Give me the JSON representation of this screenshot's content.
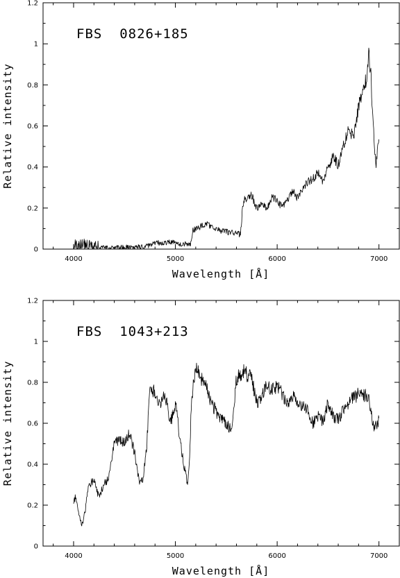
{
  "chart_data": [
    {
      "type": "line",
      "title": "FBS  0826+185",
      "xlabel": "Wavelength [",
      "xlabel_unit": "Å",
      "xlabel_close": "]",
      "ylabel": "Relative intensity",
      "xlim": [
        3700,
        7200
      ],
      "ylim": [
        0,
        1.2
      ],
      "xticks": [
        4000,
        5000,
        6000,
        7000
      ],
      "yticks": [
        0,
        0.2,
        0.4,
        0.6,
        0.8,
        1,
        1.2
      ],
      "ytick_labels": [
        "0",
        "0.2",
        "0.4",
        "0.6",
        "0.8",
        "1",
        "1.2"
      ],
      "x": [
        4000,
        4100,
        4200,
        4300,
        4400,
        4500,
        4600,
        4700,
        4750,
        4800,
        4850,
        4900,
        4950,
        5000,
        5050,
        5100,
        5150,
        5170,
        5200,
        5250,
        5300,
        5350,
        5400,
        5450,
        5500,
        5550,
        5600,
        5640,
        5660,
        5680,
        5700,
        5750,
        5800,
        5850,
        5900,
        5950,
        6000,
        6050,
        6100,
        6150,
        6200,
        6250,
        6300,
        6350,
        6400,
        6450,
        6500,
        6550,
        6600,
        6650,
        6700,
        6750,
        6800,
        6850,
        6880,
        6900,
        6920,
        6950,
        6970,
        7000
      ],
      "y": [
        0.02,
        0.015,
        0.01,
        0.008,
        0.008,
        0.008,
        0.01,
        0.012,
        0.02,
        0.03,
        0.03,
        0.028,
        0.035,
        0.03,
        0.025,
        0.025,
        0.02,
        0.09,
        0.1,
        0.11,
        0.12,
        0.115,
        0.1,
        0.09,
        0.085,
        0.08,
        0.08,
        0.07,
        0.2,
        0.24,
        0.25,
        0.26,
        0.2,
        0.23,
        0.2,
        0.25,
        0.24,
        0.2,
        0.24,
        0.28,
        0.25,
        0.3,
        0.33,
        0.34,
        0.37,
        0.33,
        0.4,
        0.45,
        0.41,
        0.5,
        0.58,
        0.55,
        0.69,
        0.8,
        0.83,
        0.96,
        0.85,
        0.55,
        0.4,
        0.54
      ]
    },
    {
      "type": "line",
      "title": "FBS  1043+213",
      "xlabel": "Wavelength [",
      "xlabel_unit": "Å",
      "xlabel_close": "]",
      "ylabel": "Relative intensity",
      "xlim": [
        3700,
        7200
      ],
      "ylim": [
        0,
        1.2
      ],
      "xticks": [
        4000,
        5000,
        6000,
        7000
      ],
      "yticks": [
        0,
        0.2,
        0.4,
        0.6,
        0.8,
        1,
        1.2
      ],
      "ytick_labels": [
        "0",
        "0.2",
        "0.4",
        "0.6",
        "0.8",
        "1",
        "1.2"
      ],
      "x": [
        4000,
        4020,
        4050,
        4080,
        4100,
        4150,
        4200,
        4250,
        4300,
        4350,
        4400,
        4450,
        4500,
        4550,
        4600,
        4650,
        4680,
        4720,
        4750,
        4800,
        4850,
        4900,
        4950,
        5000,
        5050,
        5100,
        5120,
        5140,
        5160,
        5200,
        5250,
        5300,
        5350,
        5400,
        5450,
        5500,
        5550,
        5600,
        5650,
        5680,
        5700,
        5750,
        5800,
        5850,
        5900,
        5950,
        6000,
        6050,
        6100,
        6150,
        6200,
        6250,
        6300,
        6350,
        6400,
        6450,
        6500,
        6550,
        6600,
        6650,
        6700,
        6750,
        6800,
        6850,
        6900,
        6920,
        6950,
        6980,
        7000
      ],
      "y": [
        0.2,
        0.25,
        0.15,
        0.1,
        0.13,
        0.3,
        0.32,
        0.24,
        0.3,
        0.34,
        0.5,
        0.52,
        0.5,
        0.55,
        0.45,
        0.3,
        0.32,
        0.5,
        0.78,
        0.75,
        0.7,
        0.74,
        0.6,
        0.7,
        0.5,
        0.35,
        0.3,
        0.45,
        0.72,
        0.88,
        0.82,
        0.8,
        0.7,
        0.66,
        0.62,
        0.6,
        0.56,
        0.82,
        0.84,
        0.86,
        0.84,
        0.82,
        0.7,
        0.74,
        0.78,
        0.76,
        0.78,
        0.74,
        0.7,
        0.74,
        0.7,
        0.68,
        0.66,
        0.6,
        0.64,
        0.6,
        0.7,
        0.63,
        0.62,
        0.66,
        0.7,
        0.73,
        0.74,
        0.74,
        0.72,
        0.65,
        0.58,
        0.6,
        0.62
      ]
    }
  ]
}
